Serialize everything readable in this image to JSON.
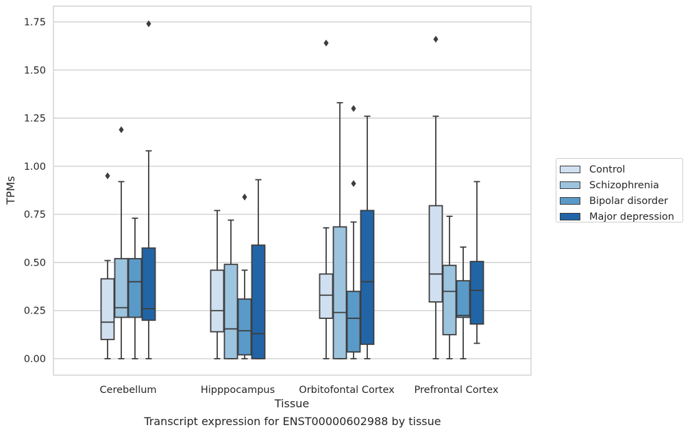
{
  "chart_data": {
    "type": "boxplot",
    "xlabel": "Tissue",
    "ylabel": "TPMs",
    "caption": "Transcript expression for ENST00000602988 by tissue",
    "ylim": [
      -0.085,
      1.83
    ],
    "yticks": [
      "0.00",
      "0.25",
      "0.50",
      "0.75",
      "1.00",
      "1.25",
      "1.50",
      "1.75"
    ],
    "ytick_values": [
      0,
      0.25,
      0.5,
      0.75,
      1.0,
      1.25,
      1.5,
      1.75
    ],
    "grid": "horizontal",
    "legend_position": "right",
    "categories": [
      "Cerebellum",
      "Hipppocampus",
      "Orbitofontal Cortex",
      "Prefrontal Cortex"
    ],
    "series": [
      {
        "name": "Control",
        "color": "#d0e0f0",
        "boxes": [
          {
            "whislo": 0,
            "q1": 0.1,
            "med": 0.19,
            "q3": 0.415,
            "whishi": 0.51,
            "fliers": [
              0.95
            ]
          },
          {
            "whislo": 0,
            "q1": 0.14,
            "med": 0.25,
            "q3": 0.46,
            "whishi": 0.77,
            "fliers": []
          },
          {
            "whislo": 0,
            "q1": 0.21,
            "med": 0.33,
            "q3": 0.44,
            "whishi": 0.68,
            "fliers": [
              1.64
            ]
          },
          {
            "whislo": 0,
            "q1": 0.295,
            "med": 0.44,
            "q3": 0.795,
            "whishi": 1.26,
            "fliers": [
              1.66
            ]
          }
        ]
      },
      {
        "name": "Schizophrenia",
        "color": "#9dc4de",
        "boxes": [
          {
            "whislo": 0,
            "q1": 0.215,
            "med": 0.265,
            "q3": 0.52,
            "whishi": 0.92,
            "fliers": [
              1.19
            ]
          },
          {
            "whislo": 0,
            "q1": 0,
            "med": 0.155,
            "q3": 0.49,
            "whishi": 0.72,
            "fliers": []
          },
          {
            "whislo": 0,
            "q1": 0,
            "med": 0.24,
            "q3": 0.685,
            "whishi": 1.33,
            "fliers": []
          },
          {
            "whislo": 0,
            "q1": 0.125,
            "med": 0.35,
            "q3": 0.485,
            "whishi": 0.74,
            "fliers": []
          }
        ]
      },
      {
        "name": "Bipolar disorder",
        "color": "#5a9ac8",
        "boxes": [
          {
            "whislo": 0,
            "q1": 0.215,
            "med": 0.4,
            "q3": 0.52,
            "whishi": 0.73,
            "fliers": []
          },
          {
            "whislo": 0,
            "q1": 0.02,
            "med": 0.145,
            "q3": 0.31,
            "whishi": 0.46,
            "fliers": [
              0.84
            ]
          },
          {
            "whislo": 0,
            "q1": 0.035,
            "med": 0.21,
            "q3": 0.35,
            "whishi": 0.71,
            "fliers": [
              0.91,
              1.3
            ]
          },
          {
            "whislo": 0,
            "q1": 0.215,
            "med": 0.225,
            "q3": 0.405,
            "whishi": 0.58,
            "fliers": []
          }
        ]
      },
      {
        "name": "Major depression",
        "color": "#2265a6",
        "boxes": [
          {
            "whislo": 0,
            "q1": 0.2,
            "med": 0.26,
            "q3": 0.575,
            "whishi": 1.08,
            "fliers": [
              1.74
            ]
          },
          {
            "whislo": 0,
            "q1": 0,
            "med": 0.13,
            "q3": 0.59,
            "whishi": 0.93,
            "fliers": []
          },
          {
            "whislo": 0,
            "q1": 0.075,
            "med": 0.4,
            "q3": 0.77,
            "whishi": 1.26,
            "fliers": []
          },
          {
            "whislo": 0.08,
            "q1": 0.18,
            "med": 0.355,
            "q3": 0.505,
            "whishi": 0.92,
            "fliers": []
          }
        ]
      }
    ]
  }
}
